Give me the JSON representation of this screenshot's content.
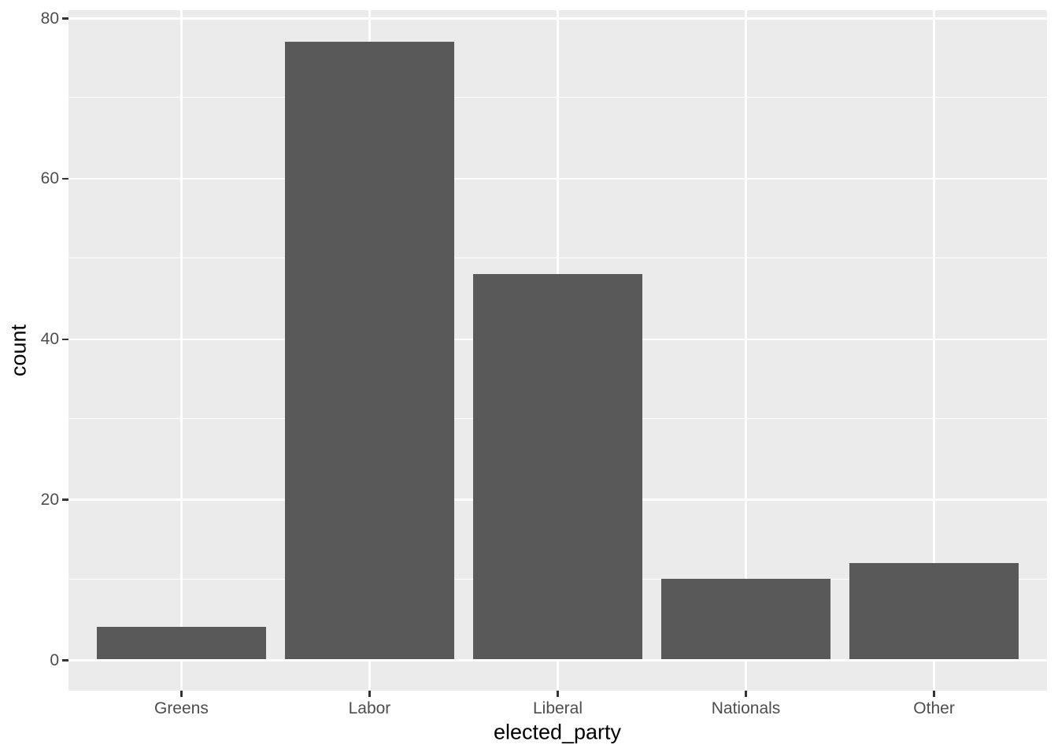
{
  "chart_data": {
    "type": "bar",
    "categories": [
      "Greens",
      "Labor",
      "Liberal",
      "Nationals",
      "Other"
    ],
    "values": [
      4,
      77,
      48,
      10,
      12
    ],
    "title": "",
    "xlabel": "elected_party",
    "ylabel": "count",
    "ylim": [
      0,
      81
    ],
    "yticks_major": [
      0,
      20,
      40,
      60,
      80
    ],
    "yticks_minor": [
      10,
      30,
      50,
      70
    ],
    "grid": "white major and minor horizontal lines, white vertical lines at category centers, on grey panel",
    "legend": "none",
    "style": {
      "panel_background": "#EBEBEB",
      "bar_fill": "#595959",
      "gridline_color": "#FFFFFF",
      "tick_label_color": "#4D4D4D",
      "tick_mark_color": "#333333",
      "axis_title_color": "#000000",
      "page_background": "#FFFFFF"
    }
  }
}
